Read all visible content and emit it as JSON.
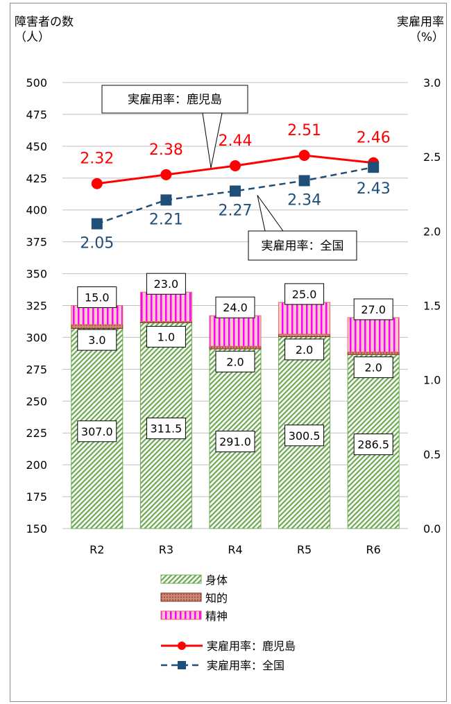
{
  "chart_data": {
    "type": "bar",
    "categories": [
      "R2",
      "R3",
      "R4",
      "R5",
      "R6"
    ],
    "left_axis": {
      "title_line1": "障害者の数",
      "title_line2": "（人）",
      "ylim": [
        150,
        500
      ],
      "ticks": [
        150,
        175,
        200,
        225,
        250,
        275,
        300,
        325,
        350,
        375,
        400,
        425,
        450,
        475,
        500
      ]
    },
    "right_axis": {
      "title_line1": "実雇用率",
      "title_line2": "（%）",
      "ylim": [
        0.0,
        3.0
      ],
      "ticks": [
        "0.0",
        "0.5",
        "1.0",
        "1.5",
        "2.0",
        "2.5",
        "3.0"
      ]
    },
    "bar_series": [
      {
        "name": "身体",
        "values": [
          307.0,
          311.5,
          291.0,
          300.5,
          286.5
        ],
        "labels": [
          "307.0",
          "311.5",
          "291.0",
          "300.5",
          "286.5"
        ],
        "color": "#6aa84f"
      },
      {
        "name": "知的",
        "values": [
          3.0,
          1.0,
          2.0,
          2.0,
          2.0
        ],
        "labels": [
          "3.0",
          "1.0",
          "2.0",
          "2.0",
          "2.0"
        ],
        "color": "#b5533c"
      },
      {
        "name": "精神",
        "values": [
          15.0,
          23.0,
          24.0,
          25.0,
          27.0
        ],
        "labels": [
          "15.0",
          "23.0",
          "24.0",
          "25.0",
          "27.0"
        ],
        "color": "#ff00ff"
      }
    ],
    "line_series": [
      {
        "name": "実雇用率：鹿児島",
        "values": [
          2.32,
          2.38,
          2.44,
          2.51,
          2.46
        ],
        "labels": [
          "2.32",
          "2.38",
          "2.44",
          "2.51",
          "2.46"
        ],
        "color": "#ff0000"
      },
      {
        "name": "実雇用率：全国",
        "values": [
          2.05,
          2.21,
          2.27,
          2.34,
          2.43
        ],
        "labels": [
          "2.05",
          "2.21",
          "2.27",
          "2.34",
          "2.43"
        ],
        "color": "#1f4e79"
      }
    ],
    "callouts": [
      "実雇用率：鹿児島",
      "実雇用率：全国"
    ],
    "legend": [
      "身体",
      "知的",
      "精神",
      "実雇用率：鹿児島",
      "実雇用率：全国"
    ],
    "grid": true,
    "legend_position": "bottom"
  }
}
